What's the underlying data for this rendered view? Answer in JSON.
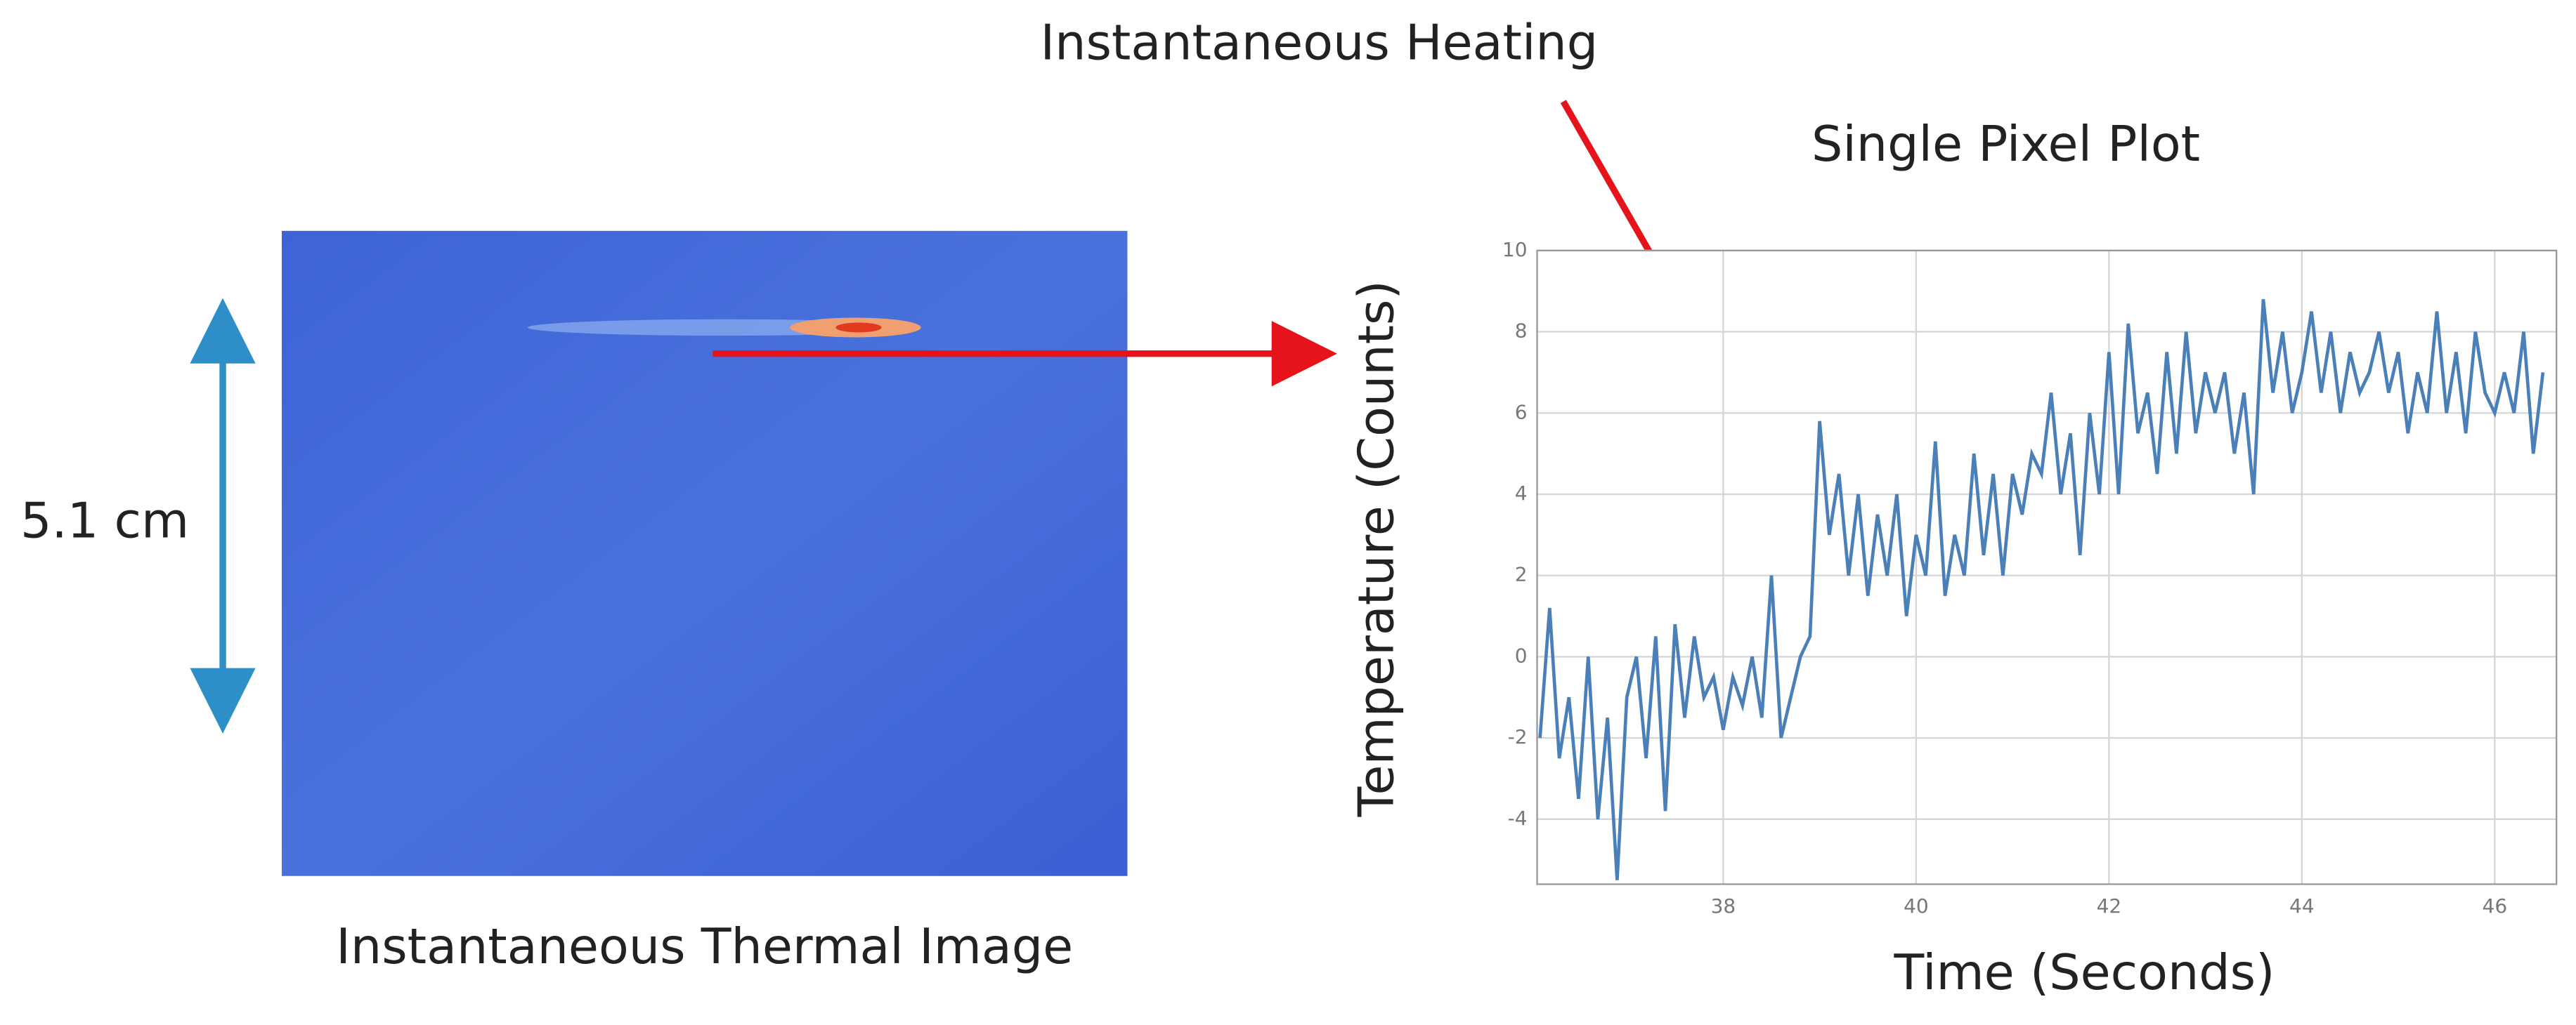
{
  "chart_data": {
    "type": "line",
    "title": "Single Pixel Plot",
    "x_label": "Time (Seconds)",
    "y_label": "Temperature (Counts)",
    "x": [
      36.1,
      36.2,
      36.3,
      36.4,
      36.5,
      36.6,
      36.7,
      36.8,
      36.9,
      37.0,
      37.1,
      37.2,
      37.3,
      37.4,
      37.5,
      37.6,
      37.7,
      37.8,
      37.9,
      38.0,
      38.1,
      38.2,
      38.3,
      38.4,
      38.5,
      38.6,
      38.7,
      38.8,
      38.9,
      39.0,
      39.1,
      39.2,
      39.3,
      39.4,
      39.5,
      39.6,
      39.7,
      39.8,
      39.9,
      40.0,
      40.1,
      40.2,
      40.3,
      40.4,
      40.5,
      40.6,
      40.7,
      40.8,
      40.9,
      41.0,
      41.1,
      41.2,
      41.3,
      41.4,
      41.5,
      41.6,
      41.7,
      41.8,
      41.9,
      42.0,
      42.1,
      42.2,
      42.3,
      42.4,
      42.5,
      42.6,
      42.7,
      42.8,
      42.9,
      43.0,
      43.1,
      43.2,
      43.3,
      43.4,
      43.5,
      43.6,
      43.7,
      43.8,
      43.9,
      44.0,
      44.1,
      44.2,
      44.3,
      44.4,
      44.5,
      44.6,
      44.7,
      44.8,
      44.9,
      45.0,
      45.1,
      45.2,
      45.3,
      45.4,
      45.5,
      45.6,
      45.7,
      45.8,
      45.9,
      46.0,
      46.1,
      46.2,
      46.3,
      46.4,
      46.5
    ],
    "values": [
      -2,
      1.2,
      -2.5,
      -1,
      -3.5,
      0,
      -4,
      -1.5,
      -5.5,
      -1,
      0,
      -2.5,
      0.5,
      -3.8,
      0.8,
      -1.5,
      0.5,
      -1,
      -0.5,
      -1.8,
      -0.5,
      -1.2,
      0,
      -1.5,
      2,
      -2,
      -1,
      0,
      0.5,
      5.8,
      3,
      4.5,
      2,
      4,
      1.5,
      3.5,
      2,
      4,
      1,
      3,
      2,
      5.3,
      1.5,
      3,
      2,
      5,
      2.5,
      4.5,
      2,
      4.5,
      3.5,
      5,
      4.5,
      6.5,
      4,
      5.5,
      2.5,
      6,
      4,
      7.5,
      4,
      8.2,
      5.5,
      6.5,
      4.5,
      7.5,
      5,
      8,
      5.5,
      7,
      6,
      7,
      5,
      6.5,
      4,
      8.8,
      6.5,
      8,
      6,
      7,
      8.5,
      6.5,
      8,
      6,
      7.5,
      6.5,
      7,
      8,
      6.5,
      7.5,
      5.5,
      7,
      6,
      8.5,
      6,
      7.5,
      5.5,
      8,
      6.5,
      6,
      7,
      6,
      8,
      5,
      7
    ],
    "color": "#4a7fb8",
    "xlim": [
      36.07,
      46.64
    ],
    "ylim": [
      -5.6,
      10
    ],
    "xticks": [
      38,
      40,
      42,
      44,
      46
    ],
    "yticks": [
      -4,
      -2,
      0,
      2,
      4,
      6,
      8,
      10
    ],
    "grid": true
  },
  "figure": {
    "annotation": "Instantaneous Heating",
    "scale_label": "5.1 cm",
    "image_caption": "Instantaneous Thermal Image"
  }
}
